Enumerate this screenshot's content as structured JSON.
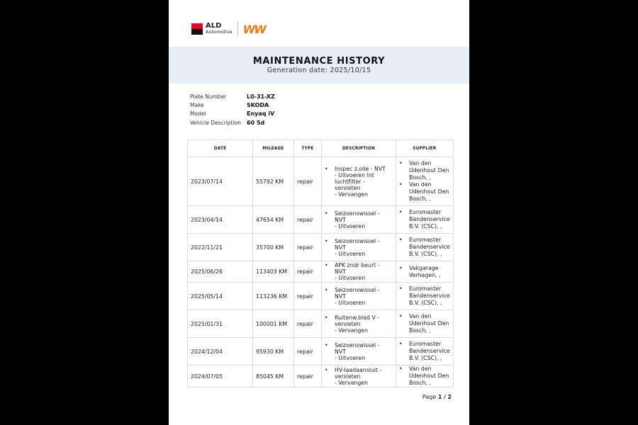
{
  "logo": {
    "brand": "ALD",
    "sub": "Automotive",
    "partner": "W"
  },
  "header": {
    "title": "MAINTENANCE HISTORY",
    "generation": "Generation date: 2025/10/15"
  },
  "vehicle": [
    {
      "label": "Plate Number",
      "value": "L0-31-XZ"
    },
    {
      "label": "Make",
      "value": "SKODA"
    },
    {
      "label": "Model",
      "value": "Enyaq iV"
    },
    {
      "label": "Vehicle Description",
      "value": "60 5d"
    }
  ],
  "table": {
    "columns": [
      "DATE",
      "MILEAGE",
      "TYPE",
      "DESCRIPTION",
      "SUPPLIER"
    ],
    "rows": [
      {
        "date": "2023/07/14",
        "mileage": "55792 KM",
        "type": "repair",
        "description": "Inspec z.olie    - NVT\n- Uitvoeren  Int luchtfilter  -\nversleten\n- Vervangen",
        "suppliers": [
          "Van den Udenhout Den Bosch, ,",
          "Van den Udenhout Den Bosch, ,"
        ]
      },
      {
        "date": "2023/04/14",
        "mileage": "47654 KM",
        "type": "repair",
        "description": "Seizoenswissel   -\nNVT\n- Uitvoeren",
        "suppliers": [
          "Euromaster Bandenservice B.V. (CSC), ,"
        ]
      },
      {
        "date": "2022/11/21",
        "mileage": "35700 KM",
        "type": "repair",
        "description": "Seizoenswissel   -\nNVT\n- Uitvoeren",
        "suppliers": [
          "Euromaster Bandenservice B.V. (CSC), ,"
        ]
      },
      {
        "date": "2025/06/26",
        "mileage": "113403 KM",
        "type": "repair",
        "description": "APK zndr beurt   -\nNVT\n- Uitvoeren",
        "suppliers": [
          "Vakgarage Verhagen, ,"
        ]
      },
      {
        "date": "2025/05/14",
        "mileage": "113236 KM",
        "type": "repair",
        "description": "Seizoenswissel   -\nNVT\n- Uitvoeren",
        "suppliers": [
          "Euromaster Bandenservice B.V. (CSC), ,"
        ]
      },
      {
        "date": "2025/01/31",
        "mileage": "100001 KM",
        "type": "repair",
        "description": "Ruitenw.blad V   -\nversleten\n- Vervangen",
        "suppliers": [
          "Van den Udenhout Den Bosch, ,"
        ]
      },
      {
        "date": "2024/12/04",
        "mileage": "95930 KM",
        "type": "repair",
        "description": "Seizoenswissel   -\nNVT\n- Uitvoeren",
        "suppliers": [
          "Euromaster Bandenservice B.V. (CSC), ,"
        ]
      },
      {
        "date": "2024/07/05",
        "mileage": "85045 KM",
        "type": "repair",
        "description": "HV-laadaansluit  -\nversleten\n- Vervangen",
        "suppliers": [
          "Van den Udenhout Den Bosch, ,"
        ]
      }
    ]
  },
  "pager": {
    "prefix": "Page",
    "current": "1",
    "separator": "/",
    "total": "2"
  },
  "colors": {
    "band": "#e9eef6",
    "ald_red": "#e60028",
    "partner_orange": "#f07a1a"
  }
}
